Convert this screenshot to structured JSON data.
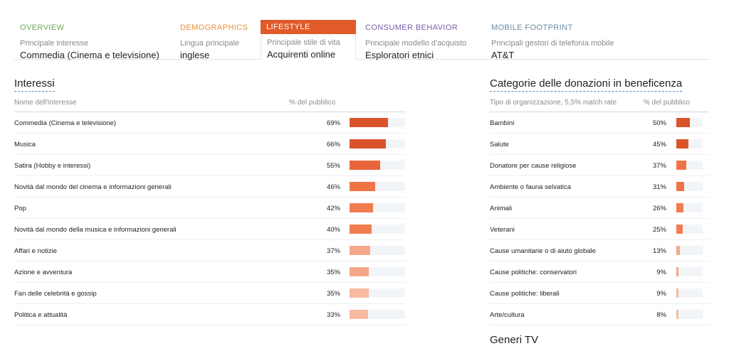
{
  "tabs": [
    {
      "title": "OVERVIEW",
      "color": "#6aa84f",
      "sub": "Principale interesse",
      "value": "Commedia (Cinema e televisione)"
    },
    {
      "title": "DEMOGRAPHICS",
      "color": "#e69138",
      "sub": "Lingua principale",
      "value": "inglese"
    },
    {
      "title": "LIFESTYLE",
      "color": "#ffffff",
      "sub": "Principale stile di vita",
      "value": "Acquirenti online",
      "active": true
    },
    {
      "title": "CONSUMER BEHAVIOR",
      "color": "#7a5ea8",
      "sub": "Principale modello d'acquisto",
      "value": "Esploratori etnici"
    },
    {
      "title": "MOBILE FOOTPRINT",
      "color": "#6d8aa0",
      "sub": "Principali gestori di telefonia mobile",
      "value": "AT&T"
    }
  ],
  "interests": {
    "title": "Interessi",
    "col_name": "Nome dell'interesse",
    "col_pct": "% del pubblico",
    "rows": [
      {
        "name": "Commedia (Cinema e televisione)",
        "pct": "69%",
        "value": 69,
        "color": "#d9532b"
      },
      {
        "name": "Musica",
        "pct": "66%",
        "value": 66,
        "color": "#d9532b"
      },
      {
        "name": "Satira (Hobby e interessi)",
        "pct": "55%",
        "value": 55,
        "color": "#e8663a"
      },
      {
        "name": "Novità dal mondo del cinema e informazioni generali",
        "pct": "46%",
        "value": 46,
        "color": "#ef7445"
      },
      {
        "name": "Pop",
        "pct": "42%",
        "value": 42,
        "color": "#f07c4f"
      },
      {
        "name": "Novità dal mondo della musica e informazioni generali",
        "pct": "40%",
        "value": 40,
        "color": "#f07c4f"
      },
      {
        "name": "Affari e notizie",
        "pct": "37%",
        "value": 37,
        "color": "#f6a78a"
      },
      {
        "name": "Azione e avventura",
        "pct": "35%",
        "value": 35,
        "color": "#f6a78a"
      },
      {
        "name": "Fan delle celebrità e gossip",
        "pct": "35%",
        "value": 35,
        "color": "#f8b9a1"
      },
      {
        "name": "Politica e attualità",
        "pct": "33%",
        "value": 33,
        "color": "#f8b9a1"
      }
    ]
  },
  "donations": {
    "title": "Categorie delle donazioni in beneficenza",
    "col_name": "Tipo di organizzazione, 5,5% match rate",
    "col_pct": "% del pubblico",
    "rows": [
      {
        "name": "Bambini",
        "pct": "50%",
        "value": 50,
        "color": "#d9532b"
      },
      {
        "name": "Salute",
        "pct": "45%",
        "value": 45,
        "color": "#d9532b"
      },
      {
        "name": "Donatore per cause religiose",
        "pct": "37%",
        "value": 37,
        "color": "#ef7445"
      },
      {
        "name": "Ambiente o fauna selvatica",
        "pct": "31%",
        "value": 31,
        "color": "#ef7445"
      },
      {
        "name": "Animali",
        "pct": "26%",
        "value": 26,
        "color": "#f07c4f"
      },
      {
        "name": "Veterani",
        "pct": "25%",
        "value": 25,
        "color": "#f07c4f"
      },
      {
        "name": "Cause umanitarie o di aiuto globale",
        "pct": "13%",
        "value": 13,
        "color": "#f6a78a"
      },
      {
        "name": "Cause politiche: conservatori",
        "pct": "9%",
        "value": 9,
        "color": "#f6a78a"
      },
      {
        "name": "Cause politiche: liberali",
        "pct": "9%",
        "value": 9,
        "color": "#f8b9a1"
      },
      {
        "name": "Arte/cultura",
        "pct": "8%",
        "value": 8,
        "color": "#f8b9a1"
      }
    ]
  },
  "next_section_title": "Generi TV"
}
